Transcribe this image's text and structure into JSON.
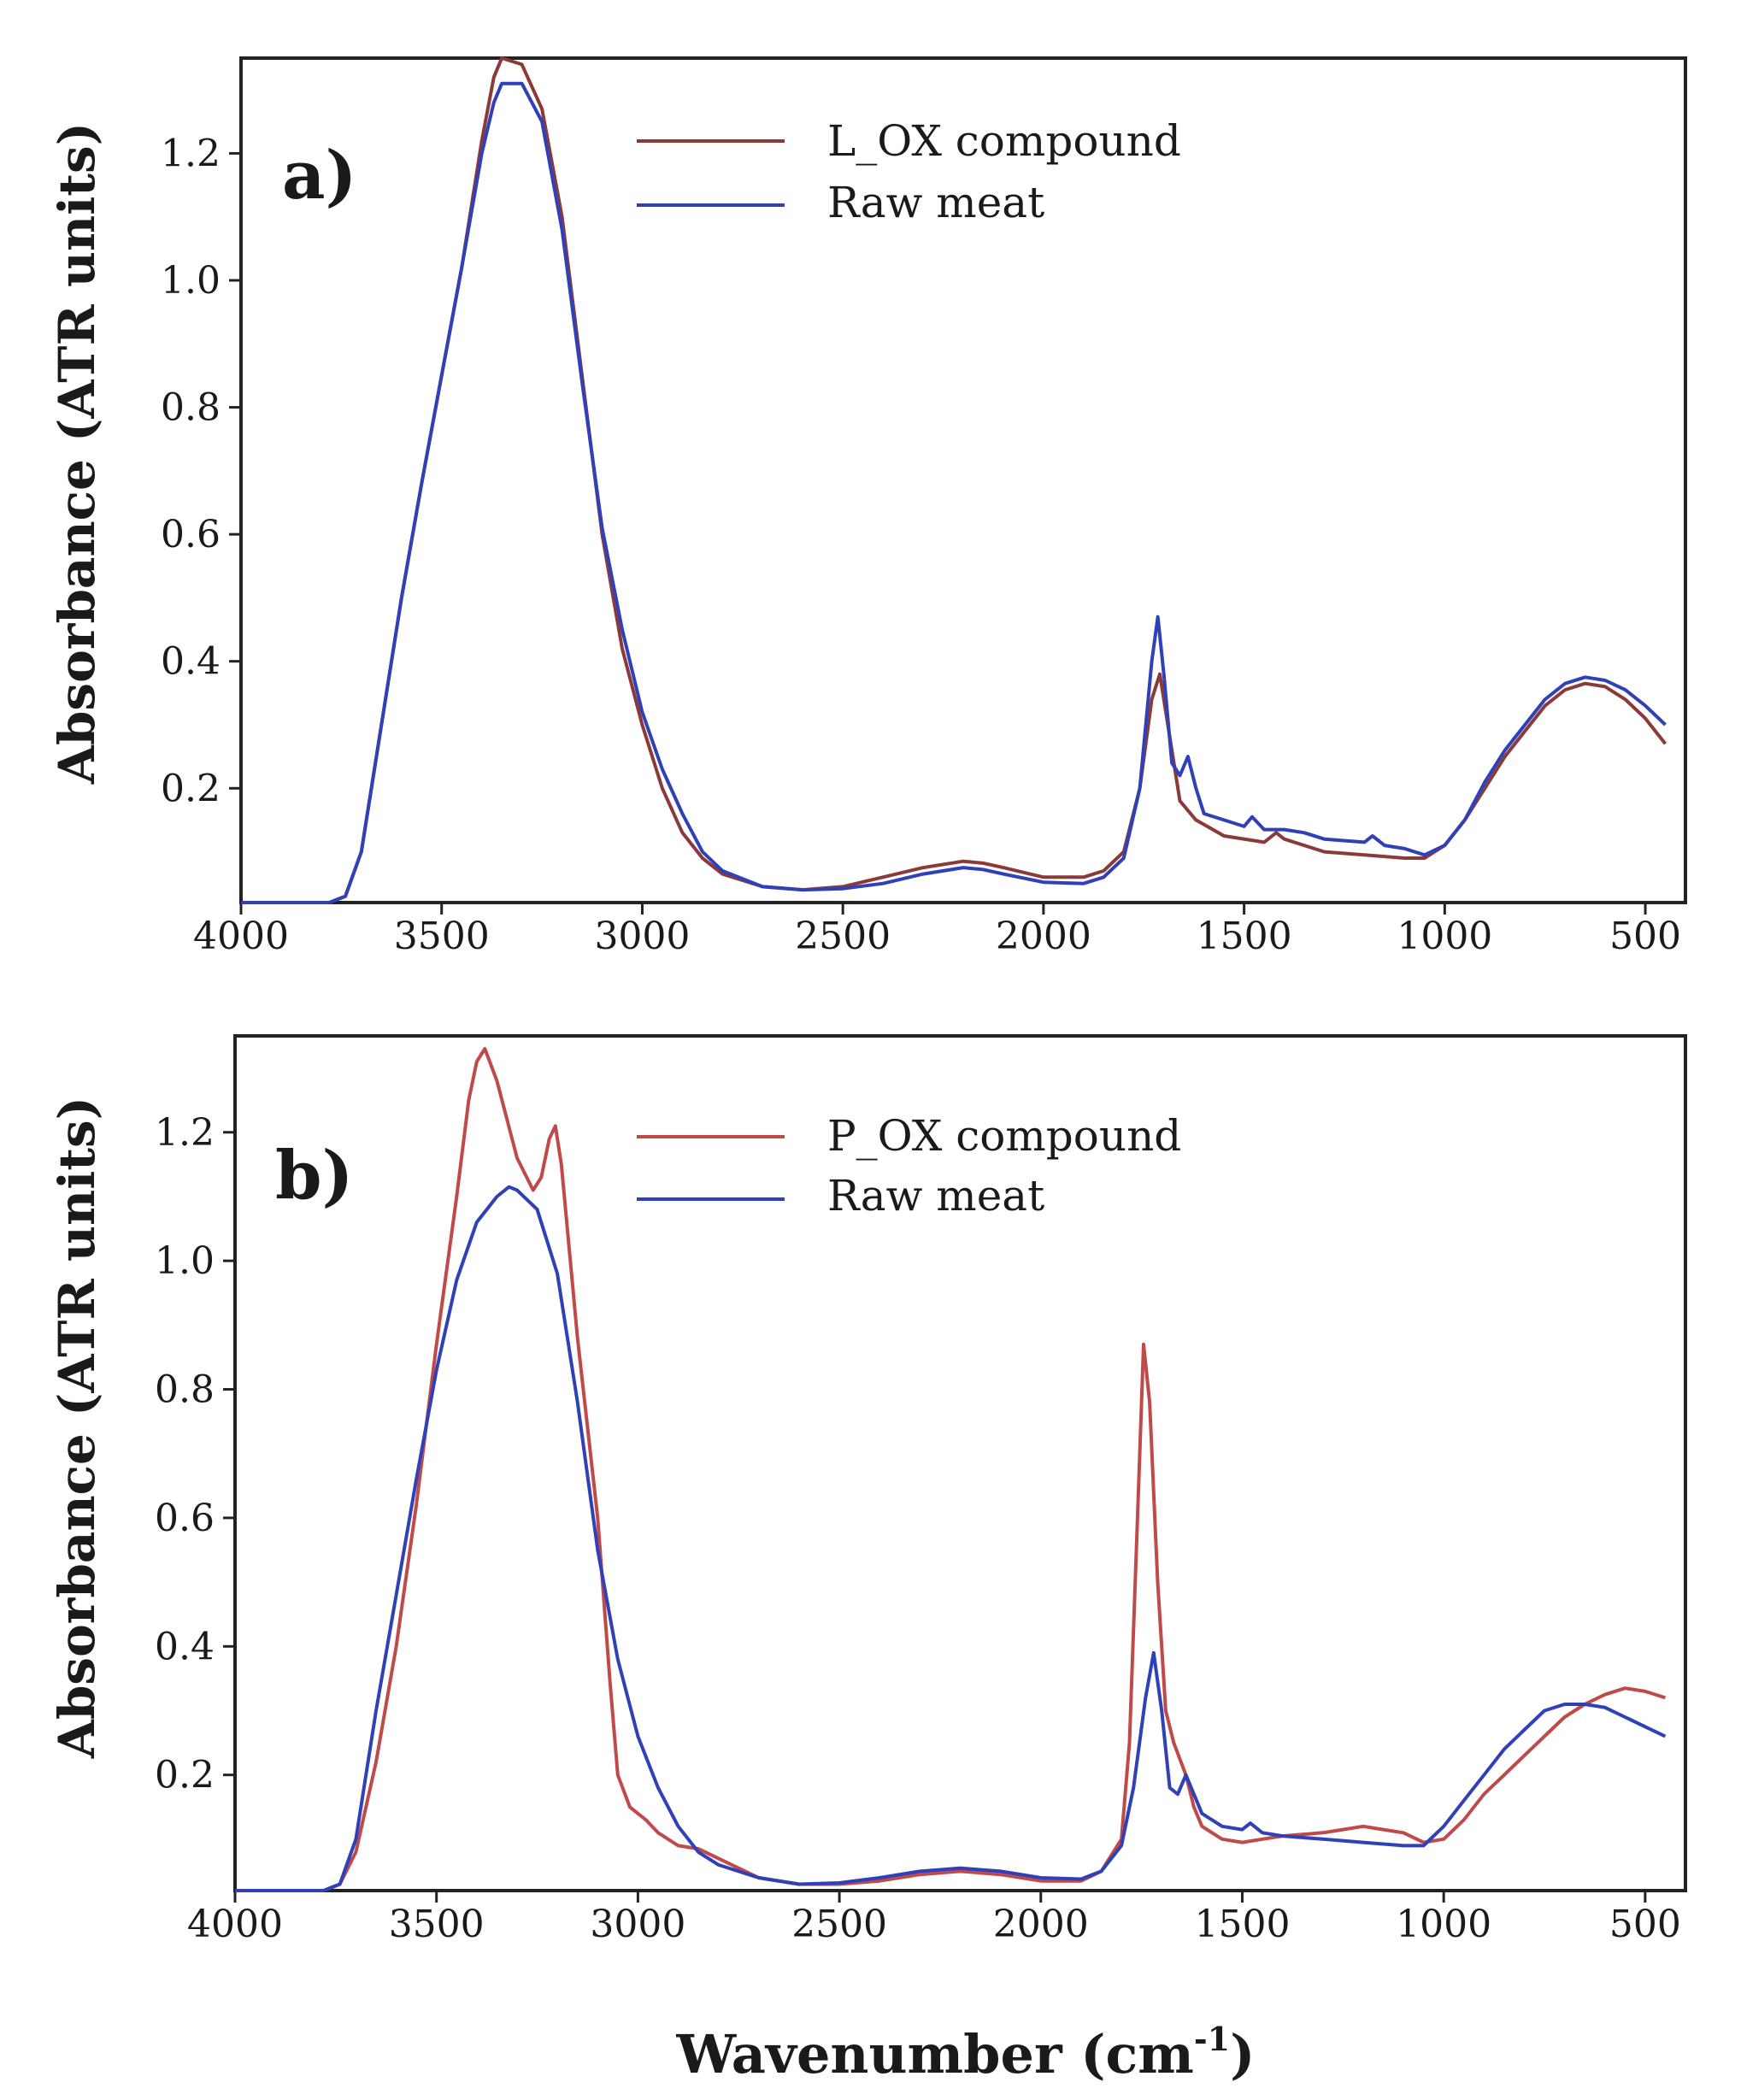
{
  "chart_data": [
    {
      "type": "line",
      "panel_label": "a)",
      "xlabel": "",
      "ylabel": "Absorbance (ATR units)",
      "xlim": [
        4000,
        400
      ],
      "ylim": [
        0.02,
        1.35
      ],
      "xticks": [
        "4000",
        "3500",
        "3000",
        "2500",
        "2000",
        "1500",
        "1000",
        "500"
      ],
      "yticks": [
        "0.2",
        "0.4",
        "0.6",
        "0.8",
        "1.0",
        "1.2"
      ],
      "legend_position": "top-right",
      "series": [
        {
          "name": "L_OX compound",
          "color": "#8b3a3a",
          "points": [
            [
              4000,
              0.02
            ],
            [
              3780,
              0.02
            ],
            [
              3740,
              0.03
            ],
            [
              3700,
              0.1
            ],
            [
              3650,
              0.3
            ],
            [
              3600,
              0.5
            ],
            [
              3550,
              0.68
            ],
            [
              3500,
              0.85
            ],
            [
              3450,
              1.02
            ],
            [
              3400,
              1.22
            ],
            [
              3370,
              1.32
            ],
            [
              3350,
              1.35
            ],
            [
              3300,
              1.34
            ],
            [
              3250,
              1.27
            ],
            [
              3200,
              1.1
            ],
            [
              3150,
              0.85
            ],
            [
              3100,
              0.6
            ],
            [
              3050,
              0.42
            ],
            [
              3000,
              0.3
            ],
            [
              2950,
              0.2
            ],
            [
              2900,
              0.13
            ],
            [
              2850,
              0.09
            ],
            [
              2800,
              0.065
            ],
            [
              2700,
              0.045
            ],
            [
              2600,
              0.04
            ],
            [
              2500,
              0.045
            ],
            [
              2400,
              0.06
            ],
            [
              2300,
              0.075
            ],
            [
              2200,
              0.085
            ],
            [
              2150,
              0.082
            ],
            [
              2100,
              0.075
            ],
            [
              2000,
              0.06
            ],
            [
              1900,
              0.06
            ],
            [
              1850,
              0.07
            ],
            [
              1800,
              0.1
            ],
            [
              1760,
              0.2
            ],
            [
              1730,
              0.34
            ],
            [
              1710,
              0.38
            ],
            [
              1690,
              0.3
            ],
            [
              1660,
              0.18
            ],
            [
              1620,
              0.15
            ],
            [
              1550,
              0.125
            ],
            [
              1450,
              0.115
            ],
            [
              1420,
              0.13
            ],
            [
              1400,
              0.12
            ],
            [
              1300,
              0.1
            ],
            [
              1200,
              0.095
            ],
            [
              1100,
              0.09
            ],
            [
              1050,
              0.09
            ],
            [
              1000,
              0.11
            ],
            [
              950,
              0.15
            ],
            [
              900,
              0.2
            ],
            [
              850,
              0.25
            ],
            [
              800,
              0.29
            ],
            [
              750,
              0.33
            ],
            [
              700,
              0.355
            ],
            [
              650,
              0.365
            ],
            [
              600,
              0.36
            ],
            [
              550,
              0.34
            ],
            [
              500,
              0.31
            ],
            [
              450,
              0.27
            ]
          ]
        },
        {
          "name": "Raw meat",
          "color": "#3040b8",
          "points": [
            [
              4000,
              0.02
            ],
            [
              3780,
              0.02
            ],
            [
              3740,
              0.03
            ],
            [
              3700,
              0.1
            ],
            [
              3650,
              0.3
            ],
            [
              3600,
              0.5
            ],
            [
              3550,
              0.68
            ],
            [
              3500,
              0.85
            ],
            [
              3450,
              1.02
            ],
            [
              3400,
              1.2
            ],
            [
              3370,
              1.28
            ],
            [
              3350,
              1.31
            ],
            [
              3300,
              1.31
            ],
            [
              3250,
              1.25
            ],
            [
              3200,
              1.08
            ],
            [
              3150,
              0.84
            ],
            [
              3100,
              0.61
            ],
            [
              3050,
              0.45
            ],
            [
              3000,
              0.32
            ],
            [
              2950,
              0.23
            ],
            [
              2900,
              0.16
            ],
            [
              2850,
              0.1
            ],
            [
              2800,
              0.07
            ],
            [
              2700,
              0.045
            ],
            [
              2600,
              0.04
            ],
            [
              2500,
              0.042
            ],
            [
              2400,
              0.05
            ],
            [
              2300,
              0.065
            ],
            [
              2200,
              0.075
            ],
            [
              2150,
              0.072
            ],
            [
              2100,
              0.065
            ],
            [
              2000,
              0.052
            ],
            [
              1900,
              0.05
            ],
            [
              1850,
              0.06
            ],
            [
              1800,
              0.09
            ],
            [
              1760,
              0.2
            ],
            [
              1730,
              0.4
            ],
            [
              1715,
              0.47
            ],
            [
              1700,
              0.38
            ],
            [
              1680,
              0.24
            ],
            [
              1660,
              0.22
            ],
            [
              1640,
              0.25
            ],
            [
              1620,
              0.2
            ],
            [
              1600,
              0.16
            ],
            [
              1550,
              0.15
            ],
            [
              1500,
              0.14
            ],
            [
              1480,
              0.155
            ],
            [
              1450,
              0.135
            ],
            [
              1400,
              0.135
            ],
            [
              1350,
              0.13
            ],
            [
              1300,
              0.12
            ],
            [
              1200,
              0.115
            ],
            [
              1180,
              0.125
            ],
            [
              1150,
              0.11
            ],
            [
              1100,
              0.105
            ],
            [
              1050,
              0.095
            ],
            [
              1000,
              0.11
            ],
            [
              950,
              0.15
            ],
            [
              900,
              0.21
            ],
            [
              850,
              0.26
            ],
            [
              800,
              0.3
            ],
            [
              750,
              0.34
            ],
            [
              700,
              0.365
            ],
            [
              650,
              0.375
            ],
            [
              600,
              0.37
            ],
            [
              550,
              0.355
            ],
            [
              500,
              0.33
            ],
            [
              450,
              0.3
            ]
          ]
        }
      ]
    },
    {
      "type": "line",
      "panel_label": "b)",
      "xlabel": "Wavenumber (cm-1)",
      "xlabel_main": "Wavenumber (cm",
      "xlabel_sup": "-1",
      "xlabel_end": ")",
      "ylabel": "Absorbance (ATR units)",
      "xlim": [
        4000,
        400
      ],
      "ylim": [
        0.02,
        1.35
      ],
      "xticks": [
        "4000",
        "3500",
        "3000",
        "2500",
        "2000",
        "1500",
        "1000",
        "500"
      ],
      "yticks": [
        "0.2",
        "0.4",
        "0.6",
        "0.8",
        "1.0",
        "1.2"
      ],
      "legend_position": "top-right",
      "series": [
        {
          "name": "P_OX compound",
          "color": "#c04a4a",
          "points": [
            [
              4000,
              0.02
            ],
            [
              3780,
              0.02
            ],
            [
              3740,
              0.03
            ],
            [
              3700,
              0.08
            ],
            [
              3650,
              0.22
            ],
            [
              3600,
              0.4
            ],
            [
              3550,
              0.62
            ],
            [
              3500,
              0.87
            ],
            [
              3450,
              1.1
            ],
            [
              3420,
              1.25
            ],
            [
              3400,
              1.31
            ],
            [
              3380,
              1.33
            ],
            [
              3350,
              1.28
            ],
            [
              3300,
              1.16
            ],
            [
              3260,
              1.11
            ],
            [
              3240,
              1.13
            ],
            [
              3220,
              1.19
            ],
            [
              3205,
              1.21
            ],
            [
              3190,
              1.15
            ],
            [
              3150,
              0.88
            ],
            [
              3100,
              0.6
            ],
            [
              3070,
              0.35
            ],
            [
              3050,
              0.2
            ],
            [
              3020,
              0.15
            ],
            [
              2980,
              0.13
            ],
            [
              2950,
              0.11
            ],
            [
              2900,
              0.09
            ],
            [
              2850,
              0.085
            ],
            [
              2800,
              0.07
            ],
            [
              2750,
              0.055
            ],
            [
              2700,
              0.04
            ],
            [
              2600,
              0.03
            ],
            [
              2500,
              0.03
            ],
            [
              2400,
              0.035
            ],
            [
              2300,
              0.045
            ],
            [
              2200,
              0.05
            ],
            [
              2100,
              0.045
            ],
            [
              2000,
              0.035
            ],
            [
              1900,
              0.035
            ],
            [
              1850,
              0.05
            ],
            [
              1800,
              0.1
            ],
            [
              1780,
              0.25
            ],
            [
              1760,
              0.6
            ],
            [
              1745,
              0.87
            ],
            [
              1730,
              0.78
            ],
            [
              1710,
              0.5
            ],
            [
              1690,
              0.3
            ],
            [
              1670,
              0.25
            ],
            [
              1640,
              0.2
            ],
            [
              1620,
              0.15
            ],
            [
              1600,
              0.12
            ],
            [
              1550,
              0.1
            ],
            [
              1500,
              0.095
            ],
            [
              1450,
              0.1
            ],
            [
              1400,
              0.105
            ],
            [
              1300,
              0.11
            ],
            [
              1250,
              0.115
            ],
            [
              1200,
              0.12
            ],
            [
              1150,
              0.115
            ],
            [
              1100,
              0.11
            ],
            [
              1050,
              0.095
            ],
            [
              1000,
              0.1
            ],
            [
              950,
              0.13
            ],
            [
              900,
              0.17
            ],
            [
              850,
              0.2
            ],
            [
              800,
              0.23
            ],
            [
              750,
              0.26
            ],
            [
              700,
              0.29
            ],
            [
              650,
              0.31
            ],
            [
              600,
              0.325
            ],
            [
              550,
              0.335
            ],
            [
              500,
              0.33
            ],
            [
              450,
              0.32
            ]
          ]
        },
        {
          "name": "Raw meat",
          "color": "#3040b8",
          "points": [
            [
              4000,
              0.02
            ],
            [
              3780,
              0.02
            ],
            [
              3740,
              0.03
            ],
            [
              3700,
              0.1
            ],
            [
              3650,
              0.3
            ],
            [
              3600,
              0.48
            ],
            [
              3550,
              0.66
            ],
            [
              3500,
              0.83
            ],
            [
              3450,
              0.97
            ],
            [
              3400,
              1.06
            ],
            [
              3350,
              1.1
            ],
            [
              3320,
              1.115
            ],
            [
              3300,
              1.11
            ],
            [
              3250,
              1.08
            ],
            [
              3200,
              0.98
            ],
            [
              3150,
              0.78
            ],
            [
              3100,
              0.55
            ],
            [
              3050,
              0.38
            ],
            [
              3000,
              0.26
            ],
            [
              2950,
              0.18
            ],
            [
              2900,
              0.12
            ],
            [
              2850,
              0.08
            ],
            [
              2800,
              0.06
            ],
            [
              2700,
              0.04
            ],
            [
              2600,
              0.03
            ],
            [
              2500,
              0.032
            ],
            [
              2400,
              0.04
            ],
            [
              2300,
              0.05
            ],
            [
              2200,
              0.055
            ],
            [
              2100,
              0.05
            ],
            [
              2000,
              0.04
            ],
            [
              1900,
              0.038
            ],
            [
              1850,
              0.05
            ],
            [
              1800,
              0.09
            ],
            [
              1770,
              0.18
            ],
            [
              1740,
              0.32
            ],
            [
              1720,
              0.39
            ],
            [
              1700,
              0.3
            ],
            [
              1680,
              0.18
            ],
            [
              1660,
              0.17
            ],
            [
              1640,
              0.2
            ],
            [
              1620,
              0.17
            ],
            [
              1600,
              0.14
            ],
            [
              1550,
              0.12
            ],
            [
              1500,
              0.115
            ],
            [
              1480,
              0.125
            ],
            [
              1450,
              0.11
            ],
            [
              1400,
              0.105
            ],
            [
              1300,
              0.1
            ],
            [
              1200,
              0.095
            ],
            [
              1100,
              0.09
            ],
            [
              1050,
              0.09
            ],
            [
              1000,
              0.12
            ],
            [
              950,
              0.16
            ],
            [
              900,
              0.2
            ],
            [
              850,
              0.24
            ],
            [
              800,
              0.27
            ],
            [
              750,
              0.3
            ],
            [
              700,
              0.31
            ],
            [
              650,
              0.31
            ],
            [
              600,
              0.305
            ],
            [
              550,
              0.29
            ],
            [
              500,
              0.275
            ],
            [
              450,
              0.26
            ]
          ]
        }
      ]
    }
  ]
}
